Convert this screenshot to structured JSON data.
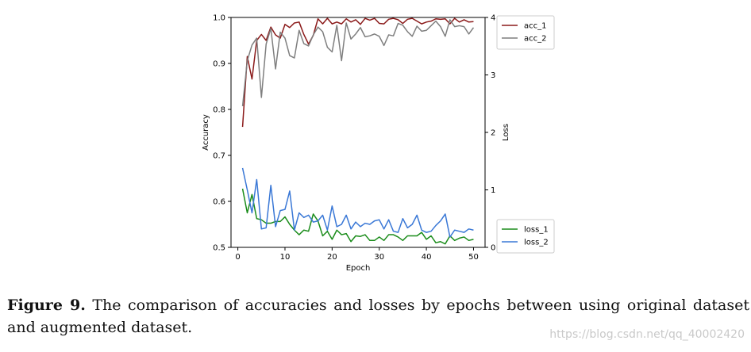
{
  "caption": {
    "label": "Figure 9.",
    "text": " The comparison of accuracies and losses by epochs between using original dataset and augmented dataset."
  },
  "watermark": "https://blog.csdn.net/qq_40002420",
  "chart_data": {
    "type": "line",
    "xlabel": "Epoch",
    "ylabel_left": "Accuracy",
    "ylabel_right": "Loss",
    "xlim": [
      1,
      50
    ],
    "ylim_left": [
      0.5,
      1.0
    ],
    "ylim_right": [
      0,
      4
    ],
    "x_ticks": [
      0,
      10,
      20,
      30,
      40,
      50
    ],
    "y_ticks_left": [
      0.5,
      0.6,
      0.7,
      0.8,
      0.9,
      1.0
    ],
    "y_ticks_right": [
      0,
      1,
      2,
      3,
      4
    ],
    "x_tick_labels": [
      "0",
      "10",
      "20",
      "30",
      "40",
      "50"
    ],
    "y_tick_labels_left": [
      "0.5",
      "0.6",
      "0.7",
      "0.8",
      "0.9",
      "1.0"
    ],
    "y_tick_labels_right": [
      "0",
      "1",
      "2",
      "3",
      "4"
    ],
    "grid": false,
    "legends": [
      {
        "position": "upper-right",
        "entries": [
          "acc_1",
          "acc_2"
        ]
      },
      {
        "position": "lower-right",
        "entries": [
          "loss_1",
          "loss_2"
        ]
      }
    ],
    "series": [
      {
        "name": "acc_1",
        "axis": "left",
        "color": "#8b1a1a",
        "values": [
          0.762,
          0.915,
          0.866,
          0.95,
          0.963,
          0.95,
          0.979,
          0.962,
          0.955,
          0.985,
          0.978,
          0.988,
          0.99,
          0.963,
          0.942,
          0.961,
          0.997,
          0.986,
          0.998,
          0.986,
          0.99,
          0.986,
          0.997,
          0.99,
          0.995,
          0.985,
          0.998,
          0.994,
          0.998,
          0.987,
          0.986,
          0.996,
          0.998,
          0.995,
          0.987,
          0.996,
          0.998,
          0.992,
          0.986,
          0.99,
          0.992,
          0.997,
          0.996,
          0.997,
          0.986,
          0.998,
          0.99,
          0.995,
          0.99,
          0.991
        ]
      },
      {
        "name": "acc_2",
        "axis": "left",
        "color": "#7f7f7f",
        "values": [
          0.807,
          0.906,
          0.94,
          0.955,
          0.826,
          0.942,
          0.976,
          0.888,
          0.968,
          0.955,
          0.917,
          0.912,
          0.972,
          0.943,
          0.938,
          0.962,
          0.979,
          0.969,
          0.935,
          0.925,
          0.983,
          0.906,
          0.988,
          0.953,
          0.964,
          0.978,
          0.958,
          0.96,
          0.964,
          0.959,
          0.939,
          0.962,
          0.96,
          0.987,
          0.983,
          0.969,
          0.959,
          0.981,
          0.97,
          0.972,
          0.982,
          0.992,
          0.98,
          0.959,
          0.995,
          0.98,
          0.982,
          0.98,
          0.964,
          0.978
        ]
      },
      {
        "name": "loss_1",
        "axis": "right",
        "color": "#1a8c1a",
        "values": [
          1.02,
          0.6,
          0.92,
          0.5,
          0.48,
          0.42,
          0.42,
          0.45,
          0.45,
          0.53,
          0.4,
          0.3,
          0.22,
          0.3,
          0.28,
          0.58,
          0.46,
          0.2,
          0.28,
          0.14,
          0.3,
          0.22,
          0.24,
          0.1,
          0.2,
          0.19,
          0.22,
          0.12,
          0.12,
          0.18,
          0.12,
          0.22,
          0.22,
          0.18,
          0.12,
          0.2,
          0.2,
          0.2,
          0.26,
          0.14,
          0.2,
          0.08,
          0.1,
          0.06,
          0.2,
          0.12,
          0.16,
          0.18,
          0.12,
          0.14
        ]
      },
      {
        "name": "loss_2",
        "axis": "right",
        "color": "#3a78d6",
        "values": [
          1.38,
          1.0,
          0.6,
          1.18,
          0.32,
          0.34,
          1.08,
          0.36,
          0.64,
          0.66,
          0.98,
          0.3,
          0.6,
          0.52,
          0.56,
          0.44,
          0.46,
          0.56,
          0.3,
          0.72,
          0.36,
          0.4,
          0.56,
          0.32,
          0.44,
          0.36,
          0.42,
          0.4,
          0.46,
          0.48,
          0.32,
          0.48,
          0.28,
          0.26,
          0.5,
          0.34,
          0.4,
          0.56,
          0.3,
          0.26,
          0.28,
          0.38,
          0.46,
          0.58,
          0.18,
          0.3,
          0.28,
          0.26,
          0.32,
          0.3
        ]
      }
    ]
  }
}
